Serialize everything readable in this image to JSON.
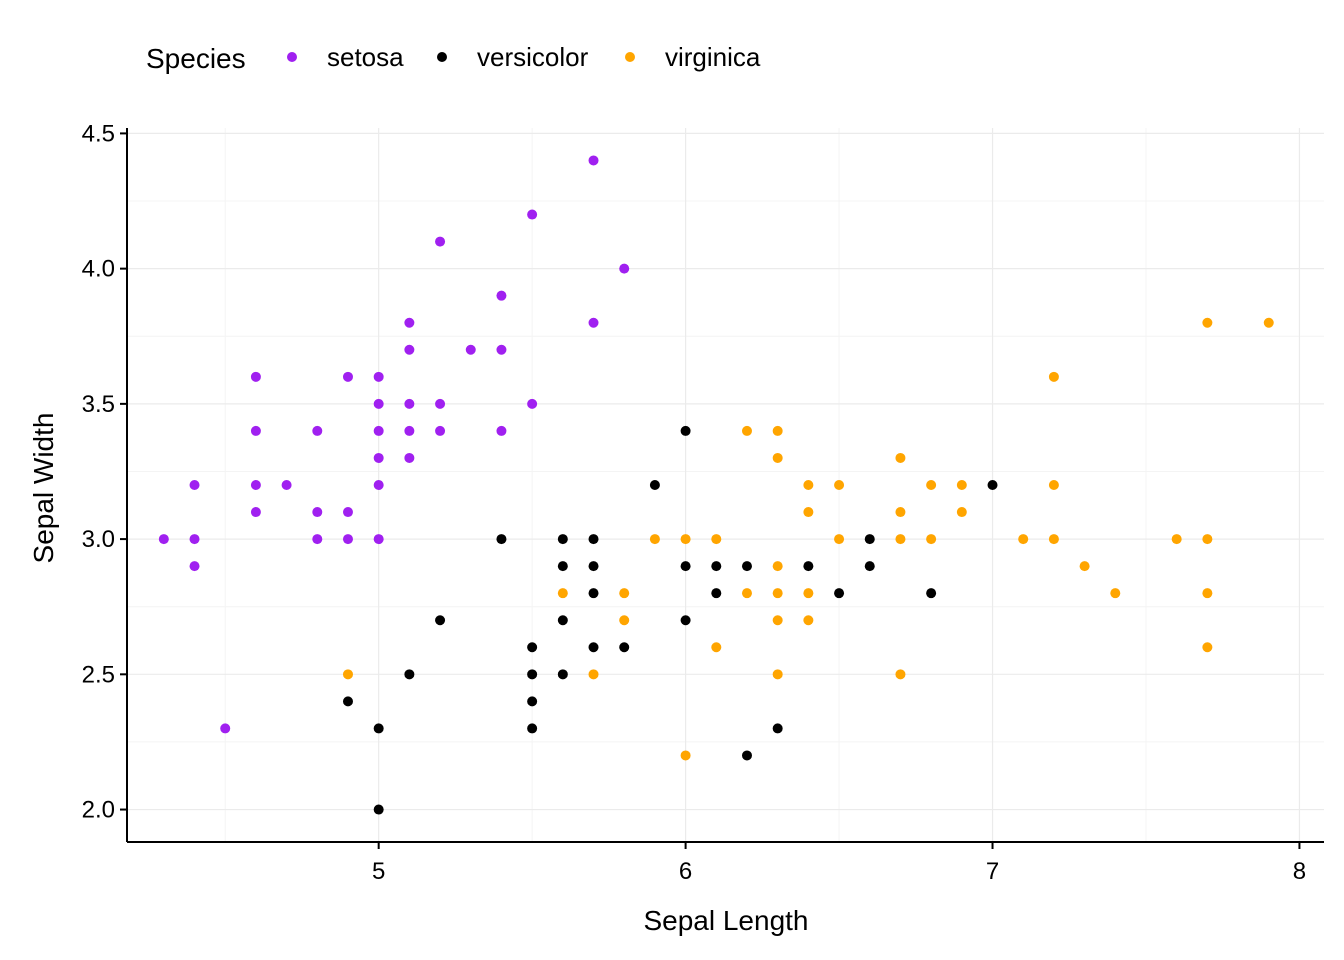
{
  "chart_data": {
    "type": "scatter",
    "title": "",
    "xlabel": "Sepal Length",
    "ylabel": "Sepal Width",
    "xlim": [
      4.18,
      8.08
    ],
    "ylim": [
      1.88,
      4.52
    ],
    "xticks": [
      5,
      6,
      7,
      8
    ],
    "xtick_labels": [
      "5",
      "6",
      "7",
      "8"
    ],
    "yticks": [
      2.0,
      2.5,
      3.0,
      3.5,
      4.0,
      4.5
    ],
    "ytick_labels": [
      "2.0",
      "2.5",
      "3.0",
      "3.5",
      "4.0",
      "4.5"
    ],
    "grid": true,
    "legend": {
      "title": "Species",
      "position": "top-left"
    },
    "series": [
      {
        "name": "setosa",
        "color": "#A020F0",
        "points": [
          [
            4.3,
            3.0
          ],
          [
            4.4,
            2.9
          ],
          [
            4.4,
            3.0
          ],
          [
            4.4,
            3.2
          ],
          [
            4.5,
            2.3
          ],
          [
            4.6,
            3.1
          ],
          [
            4.6,
            3.2
          ],
          [
            4.6,
            3.4
          ],
          [
            4.6,
            3.6
          ],
          [
            4.7,
            3.2
          ],
          [
            4.8,
            3.0
          ],
          [
            4.8,
            3.1
          ],
          [
            4.8,
            3.4
          ],
          [
            4.9,
            3.0
          ],
          [
            4.9,
            3.1
          ],
          [
            4.9,
            3.6
          ],
          [
            5.0,
            3.0
          ],
          [
            5.0,
            3.2
          ],
          [
            5.0,
            3.3
          ],
          [
            5.0,
            3.4
          ],
          [
            5.0,
            3.5
          ],
          [
            5.0,
            3.6
          ],
          [
            5.1,
            3.3
          ],
          [
            5.1,
            3.4
          ],
          [
            5.1,
            3.5
          ],
          [
            5.1,
            3.7
          ],
          [
            5.1,
            3.8
          ],
          [
            5.2,
            3.4
          ],
          [
            5.2,
            3.5
          ],
          [
            5.2,
            4.1
          ],
          [
            5.3,
            3.7
          ],
          [
            5.4,
            3.4
          ],
          [
            5.4,
            3.7
          ],
          [
            5.4,
            3.9
          ],
          [
            5.5,
            3.5
          ],
          [
            5.5,
            4.2
          ],
          [
            5.7,
            3.8
          ],
          [
            5.7,
            4.4
          ],
          [
            5.8,
            4.0
          ]
        ]
      },
      {
        "name": "versicolor",
        "color": "#000000",
        "points": [
          [
            4.9,
            2.4
          ],
          [
            5.0,
            2.0
          ],
          [
            5.0,
            2.3
          ],
          [
            5.1,
            2.5
          ],
          [
            5.2,
            2.7
          ],
          [
            5.4,
            3.0
          ],
          [
            5.5,
            2.3
          ],
          [
            5.5,
            2.4
          ],
          [
            5.5,
            2.5
          ],
          [
            5.5,
            2.6
          ],
          [
            5.6,
            2.5
          ],
          [
            5.6,
            2.7
          ],
          [
            5.6,
            2.9
          ],
          [
            5.6,
            3.0
          ],
          [
            5.7,
            2.6
          ],
          [
            5.7,
            2.8
          ],
          [
            5.7,
            2.9
          ],
          [
            5.7,
            3.0
          ],
          [
            5.8,
            2.6
          ],
          [
            5.9,
            3.2
          ],
          [
            6.0,
            2.7
          ],
          [
            6.0,
            2.9
          ],
          [
            6.0,
            3.4
          ],
          [
            6.1,
            2.8
          ],
          [
            6.1,
            2.9
          ],
          [
            6.2,
            2.2
          ],
          [
            6.2,
            2.9
          ],
          [
            6.3,
            2.3
          ],
          [
            6.4,
            2.9
          ],
          [
            6.5,
            2.8
          ],
          [
            6.6,
            2.9
          ],
          [
            6.6,
            3.0
          ],
          [
            6.8,
            2.8
          ],
          [
            7.0,
            3.2
          ]
        ]
      },
      {
        "name": "virginica",
        "color": "#FFA500",
        "points": [
          [
            4.9,
            2.5
          ],
          [
            5.6,
            2.8
          ],
          [
            5.7,
            2.5
          ],
          [
            5.8,
            2.7
          ],
          [
            5.8,
            2.8
          ],
          [
            5.9,
            3.0
          ],
          [
            6.0,
            2.2
          ],
          [
            6.0,
            3.0
          ],
          [
            6.1,
            2.6
          ],
          [
            6.1,
            3.0
          ],
          [
            6.2,
            2.8
          ],
          [
            6.2,
            3.4
          ],
          [
            6.3,
            2.5
          ],
          [
            6.3,
            2.7
          ],
          [
            6.3,
            2.8
          ],
          [
            6.3,
            2.9
          ],
          [
            6.3,
            3.3
          ],
          [
            6.3,
            3.4
          ],
          [
            6.4,
            2.7
          ],
          [
            6.4,
            2.8
          ],
          [
            6.4,
            3.1
          ],
          [
            6.4,
            3.2
          ],
          [
            6.5,
            3.0
          ],
          [
            6.5,
            3.2
          ],
          [
            6.7,
            2.5
          ],
          [
            6.7,
            3.0
          ],
          [
            6.7,
            3.1
          ],
          [
            6.7,
            3.3
          ],
          [
            6.8,
            3.0
          ],
          [
            6.8,
            3.2
          ],
          [
            6.9,
            3.1
          ],
          [
            6.9,
            3.2
          ],
          [
            7.1,
            3.0
          ],
          [
            7.2,
            3.0
          ],
          [
            7.2,
            3.2
          ],
          [
            7.2,
            3.6
          ],
          [
            7.3,
            2.9
          ],
          [
            7.4,
            2.8
          ],
          [
            7.6,
            3.0
          ],
          [
            7.7,
            2.6
          ],
          [
            7.7,
            2.8
          ],
          [
            7.7,
            3.0
          ],
          [
            7.7,
            3.8
          ],
          [
            7.9,
            3.8
          ]
        ]
      }
    ]
  }
}
